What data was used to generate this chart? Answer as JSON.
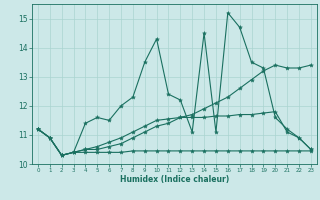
{
  "xlabel": "Humidex (Indice chaleur)",
  "background_color": "#cce8e8",
  "grid_color": "#aad4d0",
  "line_color": "#1a7060",
  "x_values": [
    0,
    1,
    2,
    3,
    4,
    5,
    6,
    7,
    8,
    9,
    10,
    11,
    12,
    13,
    14,
    15,
    16,
    17,
    18,
    19,
    20,
    21,
    22,
    23
  ],
  "series1": [
    11.2,
    10.9,
    10.3,
    10.4,
    11.4,
    11.6,
    11.5,
    12.0,
    12.3,
    13.5,
    14.3,
    12.4,
    12.2,
    11.1,
    14.5,
    11.1,
    15.2,
    14.7,
    13.5,
    13.3,
    11.6,
    11.2,
    10.9,
    10.5
  ],
  "series2": [
    11.2,
    10.9,
    10.3,
    10.4,
    10.5,
    10.5,
    10.6,
    10.7,
    10.9,
    11.1,
    11.3,
    11.4,
    11.6,
    11.7,
    11.9,
    12.1,
    12.3,
    12.6,
    12.9,
    13.2,
    13.4,
    13.3,
    13.3,
    13.4
  ],
  "series3": [
    11.2,
    10.9,
    10.3,
    10.4,
    10.4,
    10.4,
    10.4,
    10.4,
    10.45,
    10.45,
    10.45,
    10.45,
    10.45,
    10.45,
    10.45,
    10.45,
    10.45,
    10.45,
    10.45,
    10.45,
    10.45,
    10.45,
    10.45,
    10.45
  ],
  "series4": [
    11.2,
    10.9,
    10.3,
    10.4,
    10.5,
    10.6,
    10.75,
    10.9,
    11.1,
    11.3,
    11.5,
    11.55,
    11.6,
    11.6,
    11.6,
    11.65,
    11.65,
    11.7,
    11.7,
    11.75,
    11.8,
    11.1,
    10.9,
    10.5
  ],
  "ylim": [
    10.0,
    15.5
  ],
  "yticks": [
    10,
    11,
    12,
    13,
    14,
    15
  ]
}
